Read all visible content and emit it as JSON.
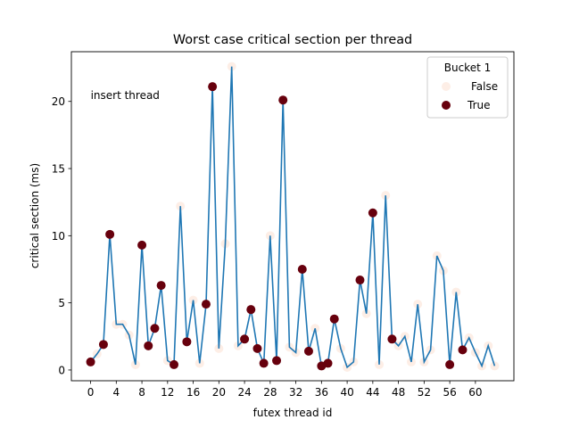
{
  "chart_data": {
    "type": "line",
    "title": "Worst case critical section per thread",
    "xlabel": "futex thread id",
    "ylabel": "critical section (ms)",
    "xlim": [
      -3,
      66
    ],
    "ylim": [
      -0.8,
      23.7
    ],
    "xticks": [
      0,
      4,
      8,
      12,
      16,
      20,
      24,
      28,
      32,
      36,
      40,
      44,
      48,
      52,
      56,
      60
    ],
    "yticks": [
      0,
      5,
      10,
      15,
      20
    ],
    "grid": false,
    "legend": {
      "title": "Bucket 1",
      "placement": "top-right",
      "entries": [
        {
          "label": "False",
          "color": "#fdeee6"
        },
        {
          "label": "True",
          "color": "#67000d"
        }
      ]
    },
    "line_color": "#1f77b4",
    "series": [
      {
        "x": [
          0,
          1,
          2,
          3,
          4,
          5,
          6,
          7,
          8,
          9,
          10,
          11,
          12,
          13,
          14,
          15,
          16,
          17,
          18,
          19,
          20,
          21,
          22,
          23,
          24,
          25,
          26,
          27,
          28,
          29,
          30,
          31,
          32,
          33,
          34,
          35,
          36,
          37,
          38,
          39,
          40,
          41,
          42,
          43,
          44,
          45,
          46,
          47,
          48,
          49,
          50,
          51,
          52,
          53,
          54,
          55,
          56,
          57,
          58,
          59,
          60,
          61,
          62,
          63
        ],
        "values": [
          0.6,
          1.2,
          1.9,
          10.1,
          3.4,
          3.4,
          2.6,
          0.4,
          9.3,
          1.8,
          3.1,
          6.3,
          0.7,
          0.4,
          12.2,
          2.1,
          5.2,
          0.5,
          4.9,
          21.1,
          1.6,
          9.4,
          22.6,
          1.8,
          2.3,
          4.5,
          1.6,
          0.5,
          10.0,
          0.7,
          20.1,
          1.7,
          1.3,
          7.5,
          1.4,
          3.1,
          0.3,
          0.5,
          3.8,
          1.6,
          0.2,
          0.6,
          6.7,
          4.2,
          11.7,
          0.4,
          13.0,
          2.3,
          1.8,
          2.5,
          0.6,
          4.9,
          0.6,
          1.5,
          8.5,
          7.4,
          0.4,
          5.8,
          1.5,
          2.4,
          1.3,
          0.3,
          1.8,
          0.3
        ],
        "bucket_true": [
          0,
          2,
          3,
          8,
          9,
          10,
          11,
          13,
          15,
          18,
          19,
          24,
          25,
          26,
          27,
          29,
          30,
          33,
          34,
          36,
          37,
          38,
          42,
          44,
          47,
          56,
          58
        ]
      }
    ],
    "annotations": [
      {
        "text": "insert thread",
        "x": 0,
        "y": 20.2
      }
    ]
  }
}
